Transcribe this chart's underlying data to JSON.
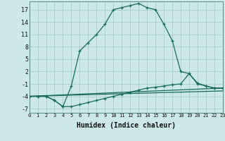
{
  "title": "",
  "xlabel": "Humidex (Indice chaleur)",
  "bg_color": "#cce8e8",
  "line_color": "#1a6b5a",
  "grid_color": "#aacccc",
  "series1_x": [
    0,
    1,
    2,
    3,
    4,
    5,
    6,
    7,
    8,
    9,
    10,
    11,
    12,
    13,
    14,
    15,
    16,
    17,
    18,
    19,
    20,
    21,
    22,
    23
  ],
  "series1_y": [
    -4,
    -4,
    -4,
    -5,
    -6.5,
    -1.5,
    7,
    9,
    11,
    13.5,
    17,
    17.5,
    18,
    18.5,
    17.5,
    17,
    13.5,
    9.5,
    2,
    1.5,
    -0.8,
    -1.5,
    -2,
    -2
  ],
  "series2_x": [
    0,
    1,
    2,
    3,
    4,
    5,
    6,
    7,
    8,
    9,
    10,
    11,
    12,
    13,
    14,
    15,
    16,
    17,
    18,
    19,
    20,
    21,
    22,
    23
  ],
  "series2_y": [
    -4,
    -4,
    -4,
    -5,
    -6.5,
    -6.5,
    -6.0,
    -5.5,
    -5.0,
    -4.5,
    -4.0,
    -3.5,
    -3.0,
    -2.5,
    -2.0,
    -1.8,
    -1.5,
    -1.2,
    -1.0,
    1.5,
    -1.0,
    -1.5,
    -2.0,
    -2.0
  ],
  "series3_x": [
    0,
    23
  ],
  "series3_y": [
    -4,
    -2
  ],
  "series4_x": [
    0,
    23
  ],
  "series4_y": [
    -4,
    -2.7
  ],
  "ylim": [
    -8,
    19
  ],
  "xlim": [
    0,
    23
  ],
  "yticks": [
    -7,
    -4,
    -1,
    2,
    5,
    8,
    11,
    14,
    17
  ],
  "xticks": [
    0,
    1,
    2,
    3,
    4,
    5,
    6,
    7,
    8,
    9,
    10,
    11,
    12,
    13,
    14,
    15,
    16,
    17,
    18,
    19,
    20,
    21,
    22,
    23
  ],
  "xlabel_fontsize": 7,
  "ytick_fontsize": 6,
  "xtick_fontsize": 5
}
